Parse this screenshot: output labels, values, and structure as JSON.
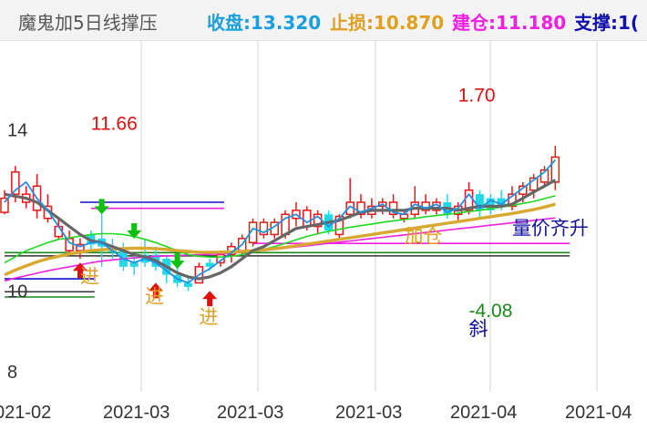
{
  "header": {
    "indicator_name": "魔鬼加5日线撑压",
    "close_label": "收盘:13.320",
    "stop_label": "止损:10.870",
    "build_label": "建仓:11.180",
    "support_label": "支撑:1(",
    "colors": {
      "close": "#1aa0e0",
      "stop": "#e0a020",
      "build": "#f020e0",
      "support": "#1010b0"
    }
  },
  "chart_data": {
    "type": "candlestick",
    "y_ticks": [
      14,
      10,
      8
    ],
    "ylim": [
      7.5,
      16.2
    ],
    "x_tick_labels": [
      "021-02",
      "2021-03",
      "2021-03",
      "2021-03",
      "2021-04",
      "2021-04"
    ],
    "candles": [
      {
        "o": 12.3,
        "h": 12.5,
        "l": 11.9,
        "c": 11.95,
        "color": "red"
      },
      {
        "o": 12.4,
        "h": 13.1,
        "l": 12.2,
        "c": 12.95,
        "color": "red"
      },
      {
        "o": 12.4,
        "h": 12.6,
        "l": 12.05,
        "c": 12.2,
        "color": "red"
      },
      {
        "o": 12.6,
        "h": 12.9,
        "l": 11.8,
        "c": 12.0,
        "color": "red"
      },
      {
        "o": 12.1,
        "h": 12.4,
        "l": 11.7,
        "c": 11.8,
        "color": "red"
      },
      {
        "o": 11.6,
        "h": 11.8,
        "l": 11.3,
        "c": 11.35,
        "color": "red"
      },
      {
        "o": 11.3,
        "h": 11.5,
        "l": 10.9,
        "c": 11.0,
        "color": "red"
      },
      {
        "o": 11.0,
        "h": 11.3,
        "l": 10.8,
        "c": 11.15,
        "color": "red"
      },
      {
        "o": 11.15,
        "h": 11.5,
        "l": 11.0,
        "c": 11.4,
        "color": "cyan"
      },
      {
        "o": 11.3,
        "h": 11.9,
        "l": 10.6,
        "c": 11.1,
        "color": "cyan"
      },
      {
        "o": 11.0,
        "h": 11.3,
        "l": 10.8,
        "c": 11.0,
        "color": "cyan"
      },
      {
        "o": 11.0,
        "h": 11.2,
        "l": 10.5,
        "c": 10.6,
        "color": "cyan"
      },
      {
        "o": 10.6,
        "h": 10.9,
        "l": 10.4,
        "c": 10.7,
        "color": "cyan"
      },
      {
        "o": 10.7,
        "h": 11.3,
        "l": 10.6,
        "c": 10.9,
        "color": "cyan"
      },
      {
        "o": 10.9,
        "h": 11.1,
        "l": 10.5,
        "c": 10.6,
        "color": "cyan"
      },
      {
        "o": 10.8,
        "h": 10.9,
        "l": 10.2,
        "c": 10.4,
        "color": "cyan"
      },
      {
        "o": 10.4,
        "h": 10.6,
        "l": 10.1,
        "c": 10.2,
        "color": "cyan"
      },
      {
        "o": 10.2,
        "h": 10.4,
        "l": 10.0,
        "c": 10.1,
        "color": "cyan"
      },
      {
        "o": 10.2,
        "h": 10.7,
        "l": 10.2,
        "c": 10.6,
        "color": "red"
      },
      {
        "o": 10.6,
        "h": 10.8,
        "l": 10.5,
        "c": 10.7,
        "color": "cyan"
      },
      {
        "o": 10.7,
        "h": 11.0,
        "l": 10.6,
        "c": 10.9,
        "color": "red"
      },
      {
        "o": 10.9,
        "h": 11.2,
        "l": 10.7,
        "c": 11.1,
        "color": "red"
      },
      {
        "o": 11.0,
        "h": 11.4,
        "l": 10.9,
        "c": 11.3,
        "color": "red"
      },
      {
        "o": 11.2,
        "h": 11.8,
        "l": 11.1,
        "c": 11.7,
        "color": "red"
      },
      {
        "o": 11.7,
        "h": 11.8,
        "l": 11.3,
        "c": 11.4,
        "color": "red"
      },
      {
        "o": 11.4,
        "h": 11.8,
        "l": 11.3,
        "c": 11.7,
        "color": "red"
      },
      {
        "o": 11.4,
        "h": 12.0,
        "l": 11.3,
        "c": 11.9,
        "color": "red"
      },
      {
        "o": 11.8,
        "h": 12.2,
        "l": 11.6,
        "c": 12.0,
        "color": "red"
      },
      {
        "o": 12.0,
        "h": 12.1,
        "l": 11.5,
        "c": 11.6,
        "color": "red"
      },
      {
        "o": 11.6,
        "h": 12.0,
        "l": 11.4,
        "c": 11.9,
        "color": "red"
      },
      {
        "o": 11.9,
        "h": 12.0,
        "l": 11.4,
        "c": 11.5,
        "color": "cyan"
      },
      {
        "o": 11.4,
        "h": 11.9,
        "l": 11.3,
        "c": 11.85,
        "color": "red"
      },
      {
        "o": 11.9,
        "h": 12.8,
        "l": 11.8,
        "c": 12.2,
        "color": "red"
      },
      {
        "o": 12.2,
        "h": 12.4,
        "l": 11.8,
        "c": 11.9,
        "color": "red"
      },
      {
        "o": 11.9,
        "h": 12.3,
        "l": 11.8,
        "c": 12.1,
        "color": "red"
      },
      {
        "o": 12.1,
        "h": 12.3,
        "l": 11.9,
        "c": 12.2,
        "color": "red"
      },
      {
        "o": 12.2,
        "h": 12.4,
        "l": 11.8,
        "c": 11.9,
        "color": "red"
      },
      {
        "o": 11.8,
        "h": 12.0,
        "l": 11.7,
        "c": 11.9,
        "color": "red"
      },
      {
        "o": 11.9,
        "h": 12.6,
        "l": 11.8,
        "c": 12.2,
        "color": "red"
      },
      {
        "o": 12.2,
        "h": 12.4,
        "l": 11.9,
        "c": 12.0,
        "color": "red"
      },
      {
        "o": 12.0,
        "h": 12.3,
        "l": 11.9,
        "c": 12.2,
        "color": "red"
      },
      {
        "o": 12.2,
        "h": 12.4,
        "l": 11.8,
        "c": 11.9,
        "color": "cyan"
      },
      {
        "o": 11.9,
        "h": 12.2,
        "l": 11.7,
        "c": 12.1,
        "color": "red"
      },
      {
        "o": 12.0,
        "h": 12.7,
        "l": 11.9,
        "c": 12.5,
        "color": "red"
      },
      {
        "o": 12.4,
        "h": 12.5,
        "l": 11.8,
        "c": 12.0,
        "color": "cyan"
      },
      {
        "o": 12.0,
        "h": 12.4,
        "l": 11.9,
        "c": 12.3,
        "color": "cyan"
      },
      {
        "o": 12.3,
        "h": 12.5,
        "l": 12.0,
        "c": 12.1,
        "color": "cyan"
      },
      {
        "o": 12.1,
        "h": 12.6,
        "l": 12.0,
        "c": 12.4,
        "color": "red"
      },
      {
        "o": 12.4,
        "h": 12.7,
        "l": 12.2,
        "c": 12.6,
        "color": "red"
      },
      {
        "o": 12.5,
        "h": 12.9,
        "l": 12.3,
        "c": 12.8,
        "color": "red"
      },
      {
        "o": 12.7,
        "h": 13.1,
        "l": 12.6,
        "c": 13.0,
        "color": "red"
      },
      {
        "o": 12.7,
        "h": 13.6,
        "l": 12.5,
        "c": 13.32,
        "color": "red"
      }
    ],
    "lines": {
      "dark_gray": [
        12.4,
        12.35,
        12.3,
        12.2,
        12.0,
        11.8,
        11.6,
        11.4,
        11.25,
        11.2,
        11.1,
        11.0,
        10.9,
        10.85,
        10.75,
        10.6,
        10.45,
        10.35,
        10.3,
        10.35,
        10.45,
        10.6,
        10.8,
        11.0,
        11.1,
        11.25,
        11.4,
        11.55,
        11.6,
        11.65,
        11.7,
        11.75,
        11.85,
        11.95,
        12.0,
        12.0,
        12.0,
        12.0,
        12.05,
        12.05,
        12.05,
        12.05,
        12.0,
        12.05,
        12.1,
        12.1,
        12.1,
        12.15,
        12.3,
        12.45,
        12.6,
        12.75
      ],
      "blue": [
        12.2,
        12.5,
        12.7,
        12.3,
        12.0,
        11.6,
        11.2,
        11.1,
        11.2,
        11.2,
        11.0,
        10.8,
        10.7,
        10.8,
        10.7,
        10.5,
        10.3,
        10.2,
        10.4,
        10.55,
        10.75,
        10.95,
        11.15,
        11.55,
        11.45,
        11.6,
        11.8,
        11.9,
        11.7,
        11.85,
        11.6,
        11.8,
        12.1,
        11.95,
        12.05,
        12.15,
        11.95,
        11.9,
        12.15,
        12.05,
        12.15,
        11.95,
        12.05,
        12.4,
        12.05,
        12.25,
        12.15,
        12.35,
        12.55,
        12.75,
        12.95,
        13.25
      ],
      "green": [
        10.7,
        10.85,
        11.0,
        11.1,
        11.2,
        11.28,
        11.32,
        11.36,
        11.4,
        11.42,
        11.42,
        11.4,
        11.35,
        11.28,
        11.2,
        11.1,
        11.0,
        10.9,
        10.86,
        10.84,
        10.84,
        10.86,
        10.9,
        10.96,
        11.03,
        11.1,
        11.18,
        11.27,
        11.35,
        11.42,
        11.48,
        11.53,
        11.58,
        11.62,
        11.66,
        11.7,
        11.74,
        11.77,
        11.8,
        11.84,
        11.87,
        11.9,
        11.93,
        11.97,
        12.0,
        12.04,
        12.08,
        12.12,
        12.17,
        12.22,
        12.29,
        12.36
      ],
      "gold": [
        10.4,
        10.52,
        10.62,
        10.72,
        10.8,
        10.86,
        10.92,
        10.96,
        11.0,
        11.02,
        11.04,
        11.05,
        11.06,
        11.06,
        11.05,
        11.03,
        11.0,
        10.98,
        10.96,
        10.96,
        10.96,
        10.97,
        10.98,
        11.0,
        11.02,
        11.05,
        11.08,
        11.12,
        11.16,
        11.2,
        11.24,
        11.28,
        11.32,
        11.36,
        11.4,
        11.44,
        11.48,
        11.52,
        11.56,
        11.6,
        11.64,
        11.68,
        11.72,
        11.76,
        11.8,
        11.84,
        11.88,
        11.92,
        11.97,
        12.02,
        12.08,
        12.15
      ],
      "magenta": [
        10.25,
        10.32,
        10.38,
        10.44,
        10.5,
        10.55,
        10.6,
        10.65,
        10.7,
        10.74,
        10.77,
        10.8,
        10.82,
        10.84,
        10.86,
        10.87,
        10.88,
        10.89,
        10.9,
        10.91,
        10.92,
        10.94,
        10.96,
        10.98,
        11.0,
        11.03,
        11.06,
        11.09,
        11.12,
        11.15,
        11.18,
        11.21,
        11.24,
        11.27,
        11.3,
        11.33,
        11.36,
        11.39,
        11.42,
        11.45,
        11.48,
        11.51,
        11.54,
        11.57,
        11.6,
        11.63,
        11.66,
        11.69,
        11.72,
        11.75,
        11.78,
        11.81
      ]
    },
    "h_lines": [
      {
        "y": 11.18,
        "x0": 23,
        "x1": 52,
        "color": "#f020e0"
      },
      {
        "y": 10.87,
        "x0": 0,
        "x1": 52,
        "color": "#333333"
      },
      {
        "y": 10.95,
        "x0": 0,
        "x1": 52,
        "color": "#1a8a1a"
      },
      {
        "y": 12.2,
        "x0": 7,
        "x1": 20,
        "color": "#1010d0"
      },
      {
        "y": 12.05,
        "x0": 8,
        "x1": 20,
        "color": "#f020e0"
      },
      {
        "y": 10.3,
        "x0": 0,
        "x1": 8,
        "color": "#1010d0"
      },
      {
        "y": 9.98,
        "x0": 0,
        "x1": 8,
        "color": "#333333"
      },
      {
        "y": 9.85,
        "x0": 0,
        "x1": 8,
        "color": "#1a8a1a"
      }
    ],
    "arrows": [
      {
        "i": 7,
        "price": 10.5,
        "dir": "up",
        "color": "#e01010"
      },
      {
        "i": 9,
        "price": 12.1,
        "dir": "down",
        "color": "#10c010"
      },
      {
        "i": 12,
        "price": 11.5,
        "dir": "down",
        "color": "#10c010"
      },
      {
        "i": 14,
        "price": 10.0,
        "dir": "up",
        "color": "#e01010"
      },
      {
        "i": 16,
        "price": 10.75,
        "dir": "down",
        "color": "#10c010"
      },
      {
        "i": 19,
        "price": 9.8,
        "dir": "up",
        "color": "#e01010"
      }
    ],
    "annotations": [
      {
        "text": "11.66",
        "i": 8,
        "price": 14.0,
        "color": "#e01010"
      },
      {
        "text": "1.70",
        "i": 42,
        "price": 14.7,
        "color": "#e01010"
      },
      {
        "text": "进",
        "i": 7,
        "price": 10.2,
        "color": "#e0a020"
      },
      {
        "text": "进",
        "i": 13,
        "price": 9.7,
        "color": "#e0a020"
      },
      {
        "text": "进",
        "i": 18,
        "price": 9.2,
        "color": "#e0a020"
      },
      {
        "text": "加仓",
        "i": 37,
        "price": 11.2,
        "color": "#e0a020"
      },
      {
        "text": "量价齐升",
        "i": 47,
        "price": 11.4,
        "color": "#1010a0"
      },
      {
        "text": "-4.08",
        "i": 43,
        "price": 9.35,
        "color": "#1a8a1a"
      },
      {
        "text": "斜",
        "i": 43,
        "price": 8.9,
        "color": "#1010a0"
      }
    ]
  }
}
